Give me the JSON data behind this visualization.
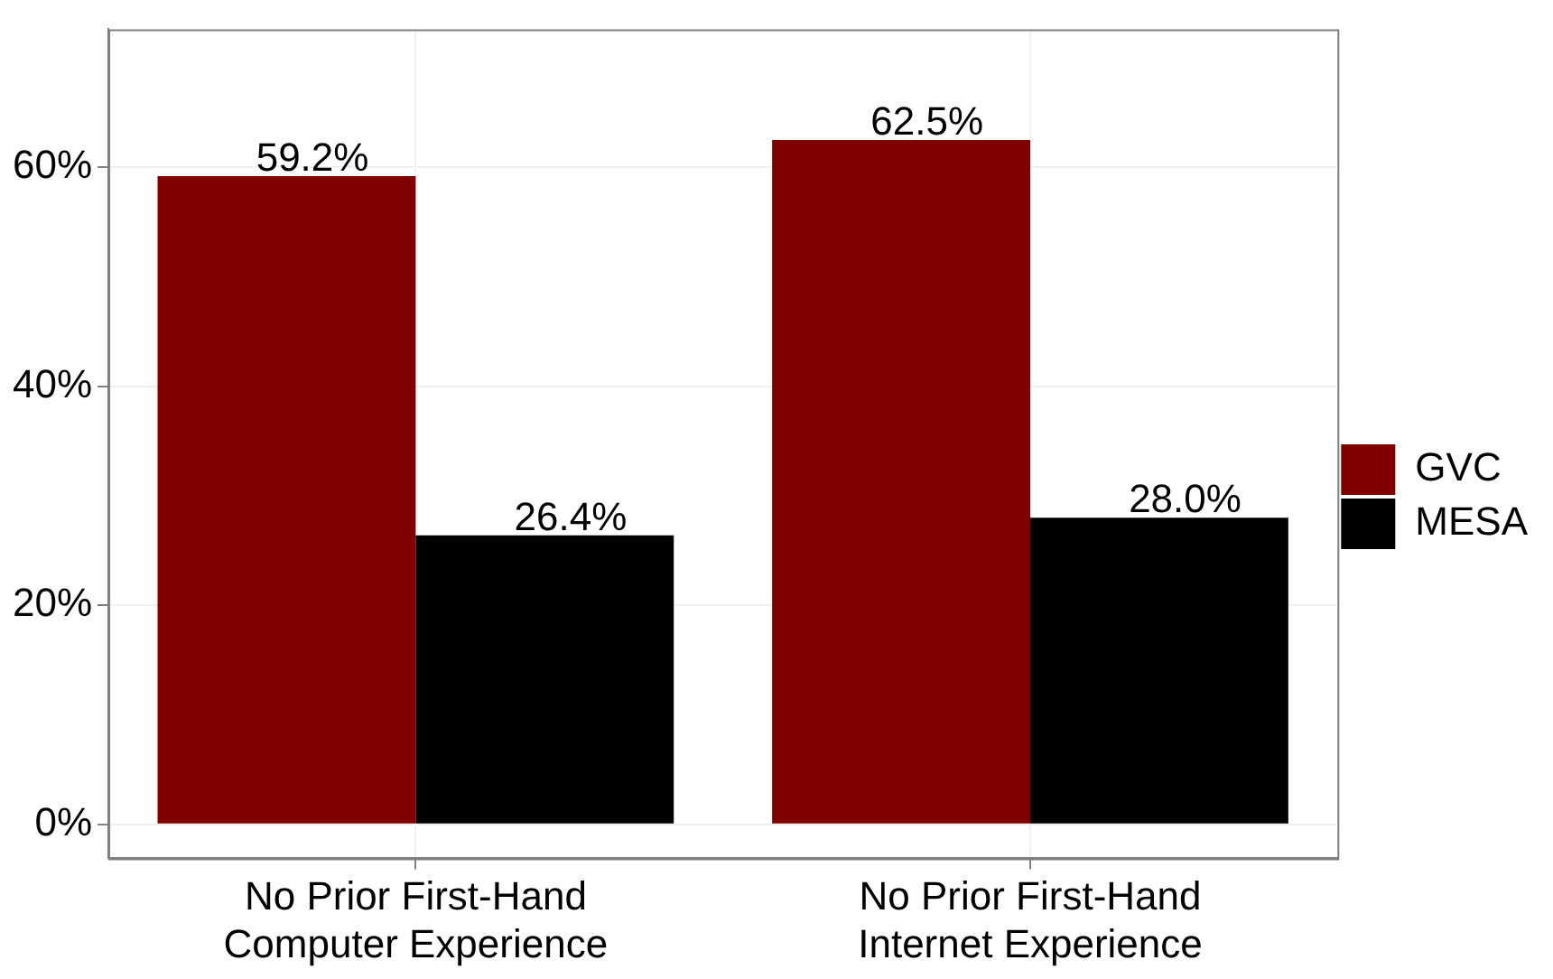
{
  "chart_data": {
    "type": "bar",
    "categories": [
      "No Prior First-Hand\nComputer Experience",
      "No Prior First-Hand\nInternet Experience"
    ],
    "series": [
      {
        "name": "GVC",
        "color": "#800000",
        "values": [
          59.2,
          62.5
        ],
        "value_labels": [
          "59.2%",
          "62.5%"
        ]
      },
      {
        "name": "MESA",
        "color": "#000000",
        "values": [
          26.4,
          28.0
        ],
        "value_labels": [
          "26.4%",
          "28.0%"
        ]
      }
    ],
    "ylim": [
      -3.1,
      72.6
    ],
    "yticks": [
      {
        "value": 0,
        "label": "0%"
      },
      {
        "value": 20,
        "label": "20%"
      },
      {
        "value": 40,
        "label": "40%"
      },
      {
        "value": 60,
        "label": "60%"
      }
    ],
    "grid": true,
    "legend": "right"
  }
}
